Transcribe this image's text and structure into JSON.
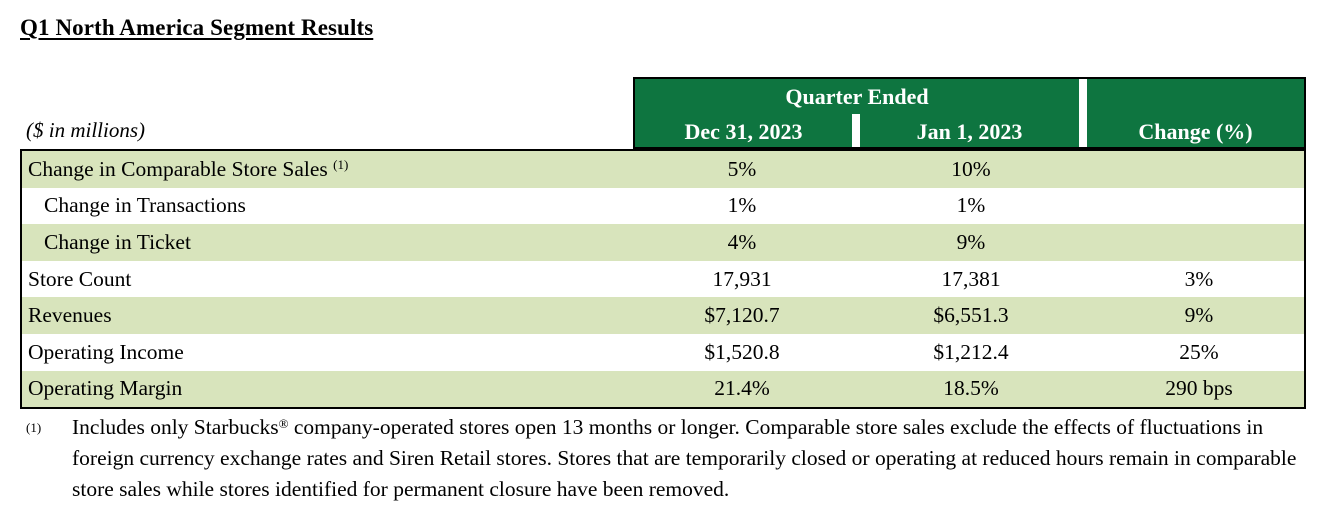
{
  "title": "Q1 North America Segment Results",
  "units_label": "($ in millions)",
  "header": {
    "group_label": "Quarter Ended",
    "col1": "Dec 31, 2023",
    "col2": "Jan 1, 2023",
    "col3": "Change (%)"
  },
  "colors": {
    "header_green": "#0e7540",
    "row_shade": "#d8e4bc"
  },
  "rows": [
    {
      "label": "Change in Comparable Store Sales",
      "sup": "(1)",
      "c1": "5%",
      "c2": "10%",
      "c3": ""
    },
    {
      "label": "Change in Transactions",
      "c1": "1%",
      "c2": "1%",
      "c3": ""
    },
    {
      "label": "Change in Ticket",
      "c1": "4%",
      "c2": "9%",
      "c3": ""
    },
    {
      "label": "Store Count",
      "c1": "17,931",
      "c2": "17,381",
      "c3": "3%"
    },
    {
      "label": "Revenues",
      "c1": "$7,120.7",
      "c2": "$6,551.3",
      "c3": "9%"
    },
    {
      "label": "Operating Income",
      "c1": "$1,520.8",
      "c2": "$1,212.4",
      "c3": "25%"
    },
    {
      "label": "Operating Margin",
      "c1": "21.4%",
      "c2": "18.5%",
      "c3": "290 bps"
    }
  ],
  "footnote": {
    "mark": "(1)",
    "text_before": "Includes only Starbucks",
    "registered": "®",
    "text_after": " company-operated stores open 13 months or longer. Comparable store sales exclude the effects of fluctuations in foreign currency exchange rates and Siren Retail stores. Stores that are temporarily closed or operating at reduced hours remain in comparable store sales while stores identified for permanent closure have been removed."
  }
}
